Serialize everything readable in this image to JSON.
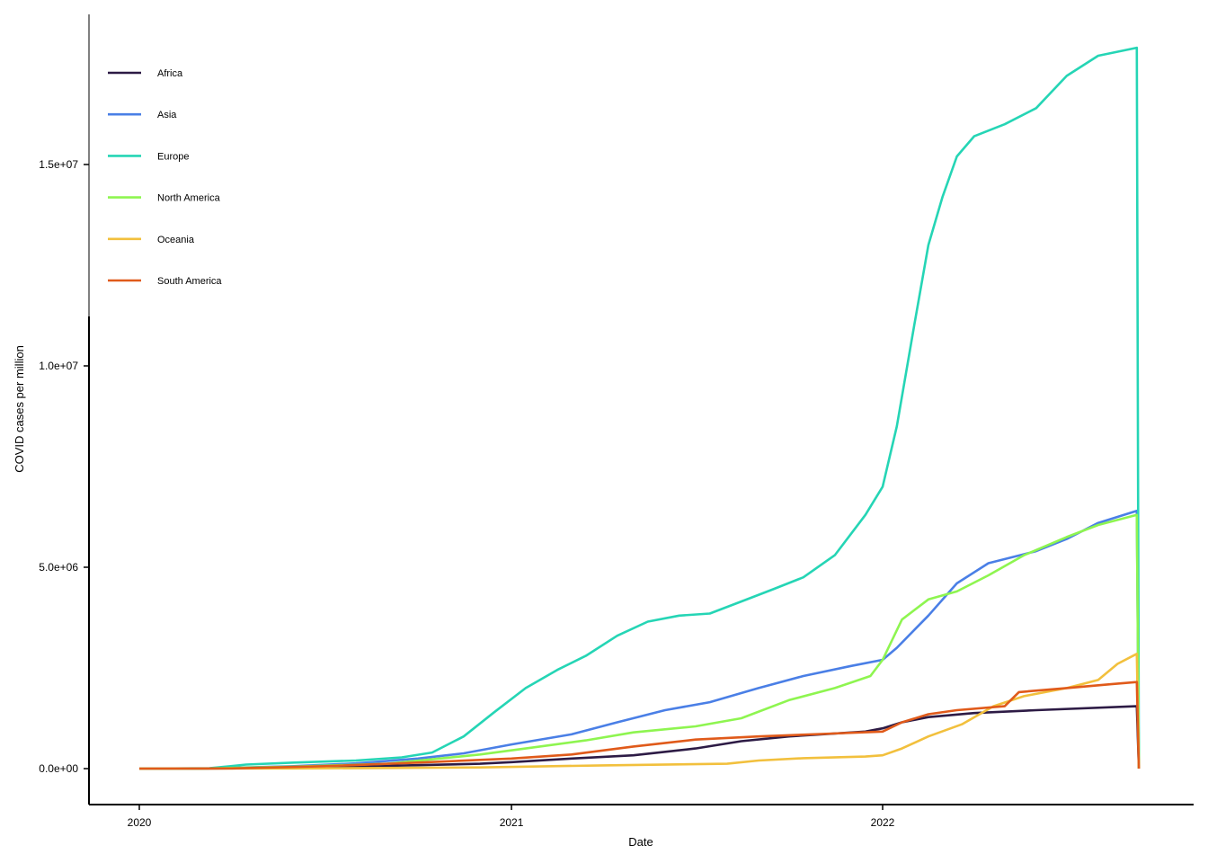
{
  "chart_data": {
    "type": "line",
    "xlabel": "Date",
    "ylabel": "COVID cases per million",
    "x_ticks": [
      "2020",
      "2021",
      "2022"
    ],
    "y_ticks": [
      "0.0e+00",
      "5.0e+06",
      "1.0e+07",
      "1.5e+07"
    ],
    "y_tick_values": [
      0,
      5000000,
      10000000,
      15000000
    ],
    "xlim": [
      "2020-01-01",
      "2022-09-15"
    ],
    "ylim": [
      -900000,
      18800000
    ],
    "grid": false,
    "legend_position": "top-left",
    "series": [
      {
        "name": "Africa",
        "color": "#2d1b45",
        "points": [
          [
            "2020-01-01",
            0
          ],
          [
            "2020-03-01",
            0
          ],
          [
            "2020-06-01",
            20000
          ],
          [
            "2020-09-01",
            70000
          ],
          [
            "2020-12-01",
            120000
          ],
          [
            "2021-01-01",
            160000
          ],
          [
            "2021-03-01",
            250000
          ],
          [
            "2021-05-01",
            330000
          ],
          [
            "2021-07-01",
            500000
          ],
          [
            "2021-08-15",
            680000
          ],
          [
            "2021-10-01",
            800000
          ],
          [
            "2021-12-15",
            920000
          ],
          [
            "2022-01-01",
            1000000
          ],
          [
            "2022-01-20",
            1150000
          ],
          [
            "2022-02-15",
            1280000
          ],
          [
            "2022-04-01",
            1380000
          ],
          [
            "2022-06-01",
            1450000
          ],
          [
            "2022-09-08",
            1550000
          ],
          [
            "2022-09-10",
            0
          ]
        ]
      },
      {
        "name": "Asia",
        "color": "#4a7fe6",
        "points": [
          [
            "2020-01-01",
            0
          ],
          [
            "2020-03-01",
            0
          ],
          [
            "2020-06-01",
            60000
          ],
          [
            "2020-08-01",
            130000
          ],
          [
            "2020-10-01",
            250000
          ],
          [
            "2020-11-15",
            380000
          ],
          [
            "2021-01-01",
            600000
          ],
          [
            "2021-03-01",
            850000
          ],
          [
            "2021-04-15",
            1150000
          ],
          [
            "2021-06-01",
            1450000
          ],
          [
            "2021-07-15",
            1650000
          ],
          [
            "2021-09-01",
            2000000
          ],
          [
            "2021-10-15",
            2300000
          ],
          [
            "2021-12-01",
            2550000
          ],
          [
            "2022-01-01",
            2700000
          ],
          [
            "2022-01-15",
            3000000
          ],
          [
            "2022-02-15",
            3800000
          ],
          [
            "2022-03-15",
            4600000
          ],
          [
            "2022-04-15",
            5100000
          ],
          [
            "2022-06-01",
            5400000
          ],
          [
            "2022-07-01",
            5700000
          ],
          [
            "2022-08-01",
            6100000
          ],
          [
            "2022-09-08",
            6400000
          ],
          [
            "2022-09-10",
            0
          ]
        ]
      },
      {
        "name": "Europe",
        "color": "#25d5b5",
        "points": [
          [
            "2020-01-01",
            0
          ],
          [
            "2020-03-10",
            10000
          ],
          [
            "2020-04-15",
            100000
          ],
          [
            "2020-06-01",
            150000
          ],
          [
            "2020-08-01",
            200000
          ],
          [
            "2020-09-15",
            280000
          ],
          [
            "2020-10-15",
            400000
          ],
          [
            "2020-11-15",
            800000
          ],
          [
            "2020-12-15",
            1400000
          ],
          [
            "2021-01-15",
            2000000
          ],
          [
            "2021-02-15",
            2450000
          ],
          [
            "2021-03-15",
            2800000
          ],
          [
            "2021-04-15",
            3300000
          ],
          [
            "2021-05-15",
            3650000
          ],
          [
            "2021-06-15",
            3800000
          ],
          [
            "2021-07-15",
            3850000
          ],
          [
            "2021-08-15",
            4150000
          ],
          [
            "2021-09-15",
            4450000
          ],
          [
            "2021-10-15",
            4750000
          ],
          [
            "2021-11-15",
            5300000
          ],
          [
            "2021-12-15",
            6300000
          ],
          [
            "2022-01-01",
            7000000
          ],
          [
            "2022-01-15",
            8500000
          ],
          [
            "2022-02-01",
            11000000
          ],
          [
            "2022-02-15",
            13000000
          ],
          [
            "2022-03-01",
            14200000
          ],
          [
            "2022-03-15",
            15200000
          ],
          [
            "2022-04-01",
            15700000
          ],
          [
            "2022-05-01",
            16000000
          ],
          [
            "2022-06-01",
            16400000
          ],
          [
            "2022-07-01",
            17200000
          ],
          [
            "2022-08-01",
            17700000
          ],
          [
            "2022-09-08",
            17900000
          ],
          [
            "2022-09-10",
            0
          ]
        ]
      },
      {
        "name": "North America",
        "color": "#8ef550",
        "points": [
          [
            "2020-01-01",
            0
          ],
          [
            "2020-03-01",
            0
          ],
          [
            "2020-06-01",
            50000
          ],
          [
            "2020-09-01",
            120000
          ],
          [
            "2020-12-01",
            350000
          ],
          [
            "2021-01-15",
            500000
          ],
          [
            "2021-03-15",
            700000
          ],
          [
            "2021-05-01",
            900000
          ],
          [
            "2021-07-01",
            1050000
          ],
          [
            "2021-08-15",
            1250000
          ],
          [
            "2021-10-01",
            1700000
          ],
          [
            "2021-11-15",
            2000000
          ],
          [
            "2021-12-20",
            2300000
          ],
          [
            "2022-01-01",
            2700000
          ],
          [
            "2022-01-20",
            3700000
          ],
          [
            "2022-02-15",
            4200000
          ],
          [
            "2022-03-15",
            4400000
          ],
          [
            "2022-04-15",
            4800000
          ],
          [
            "2022-05-20",
            5300000
          ],
          [
            "2022-07-01",
            5750000
          ],
          [
            "2022-08-01",
            6050000
          ],
          [
            "2022-09-08",
            6300000
          ],
          [
            "2022-09-10",
            0
          ]
        ]
      },
      {
        "name": "Oceania",
        "color": "#f2c03d",
        "points": [
          [
            "2020-01-01",
            0
          ],
          [
            "2020-06-01",
            5000
          ],
          [
            "2020-12-01",
            30000
          ],
          [
            "2021-04-01",
            80000
          ],
          [
            "2021-08-01",
            120000
          ],
          [
            "2021-09-01",
            200000
          ],
          [
            "2021-10-15",
            260000
          ],
          [
            "2021-12-15",
            300000
          ],
          [
            "2022-01-01",
            330000
          ],
          [
            "2022-01-20",
            500000
          ],
          [
            "2022-02-15",
            800000
          ],
          [
            "2022-03-20",
            1100000
          ],
          [
            "2022-04-20",
            1550000
          ],
          [
            "2022-05-20",
            1800000
          ],
          [
            "2022-07-01",
            2000000
          ],
          [
            "2022-08-01",
            2200000
          ],
          [
            "2022-08-20",
            2600000
          ],
          [
            "2022-09-08",
            2850000
          ],
          [
            "2022-09-10",
            0
          ]
        ]
      },
      {
        "name": "South America",
        "color": "#e05a1a",
        "points": [
          [
            "2020-01-01",
            0
          ],
          [
            "2020-04-01",
            5000
          ],
          [
            "2020-07-01",
            60000
          ],
          [
            "2020-10-01",
            150000
          ],
          [
            "2021-01-01",
            250000
          ],
          [
            "2021-03-01",
            350000
          ],
          [
            "2021-05-01",
            550000
          ],
          [
            "2021-07-01",
            720000
          ],
          [
            "2021-09-01",
            800000
          ],
          [
            "2021-11-01",
            860000
          ],
          [
            "2022-01-01",
            920000
          ],
          [
            "2022-01-20",
            1150000
          ],
          [
            "2022-02-15",
            1350000
          ],
          [
            "2022-03-15",
            1450000
          ],
          [
            "2022-05-01",
            1550000
          ],
          [
            "2022-05-15",
            1900000
          ],
          [
            "2022-07-01",
            2000000
          ],
          [
            "2022-08-15",
            2100000
          ],
          [
            "2022-09-08",
            2150000
          ],
          [
            "2022-09-10",
            0
          ]
        ]
      }
    ]
  }
}
